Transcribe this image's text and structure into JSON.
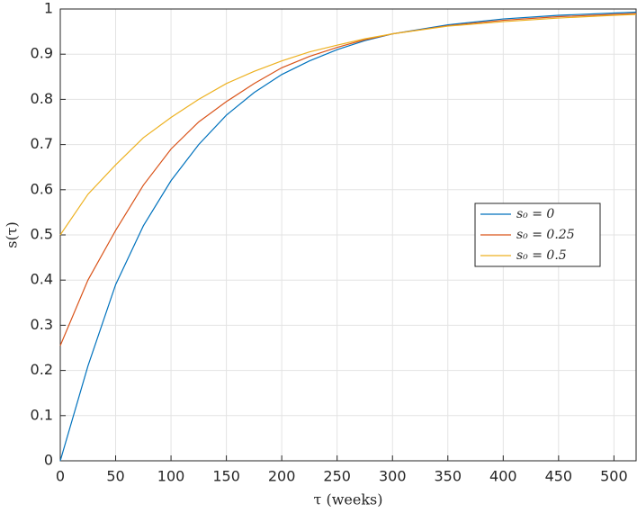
{
  "chart_data": {
    "type": "line",
    "x_label": "τ (weeks)",
    "y_label": "s(τ)",
    "x": [
      0,
      25,
      50,
      75,
      100,
      125,
      150,
      175,
      200,
      225,
      250,
      275,
      300,
      350,
      400,
      450,
      500,
      520
    ],
    "series": [
      {
        "name": "s₀ = 0",
        "color": "#0072BD",
        "values": [
          0,
          0.21,
          0.39,
          0.52,
          0.62,
          0.7,
          0.765,
          0.815,
          0.855,
          0.885,
          0.91,
          0.93,
          0.945,
          0.965,
          0.978,
          0.986,
          0.991,
          0.993
        ]
      },
      {
        "name": "s₀ = 0.25",
        "color": "#D95319",
        "values": [
          0.255,
          0.4,
          0.51,
          0.61,
          0.69,
          0.75,
          0.795,
          0.835,
          0.87,
          0.895,
          0.915,
          0.932,
          0.945,
          0.963,
          0.975,
          0.983,
          0.988,
          0.99
        ]
      },
      {
        "name": "s₀ = 0.5",
        "color": "#EDB120",
        "values": [
          0.5,
          0.59,
          0.655,
          0.715,
          0.76,
          0.8,
          0.835,
          0.862,
          0.885,
          0.905,
          0.92,
          0.934,
          0.945,
          0.962,
          0.972,
          0.98,
          0.986,
          0.988
        ]
      }
    ],
    "xlim": [
      0,
      520
    ],
    "xticks": [
      0,
      50,
      100,
      150,
      200,
      250,
      300,
      350,
      400,
      450,
      500
    ],
    "ylim": [
      0,
      1
    ],
    "yticks": [
      0,
      0.1,
      0.2,
      0.3,
      0.4,
      0.5,
      0.6,
      0.7,
      0.8,
      0.9,
      1
    ],
    "grid": true,
    "legend": "east"
  }
}
